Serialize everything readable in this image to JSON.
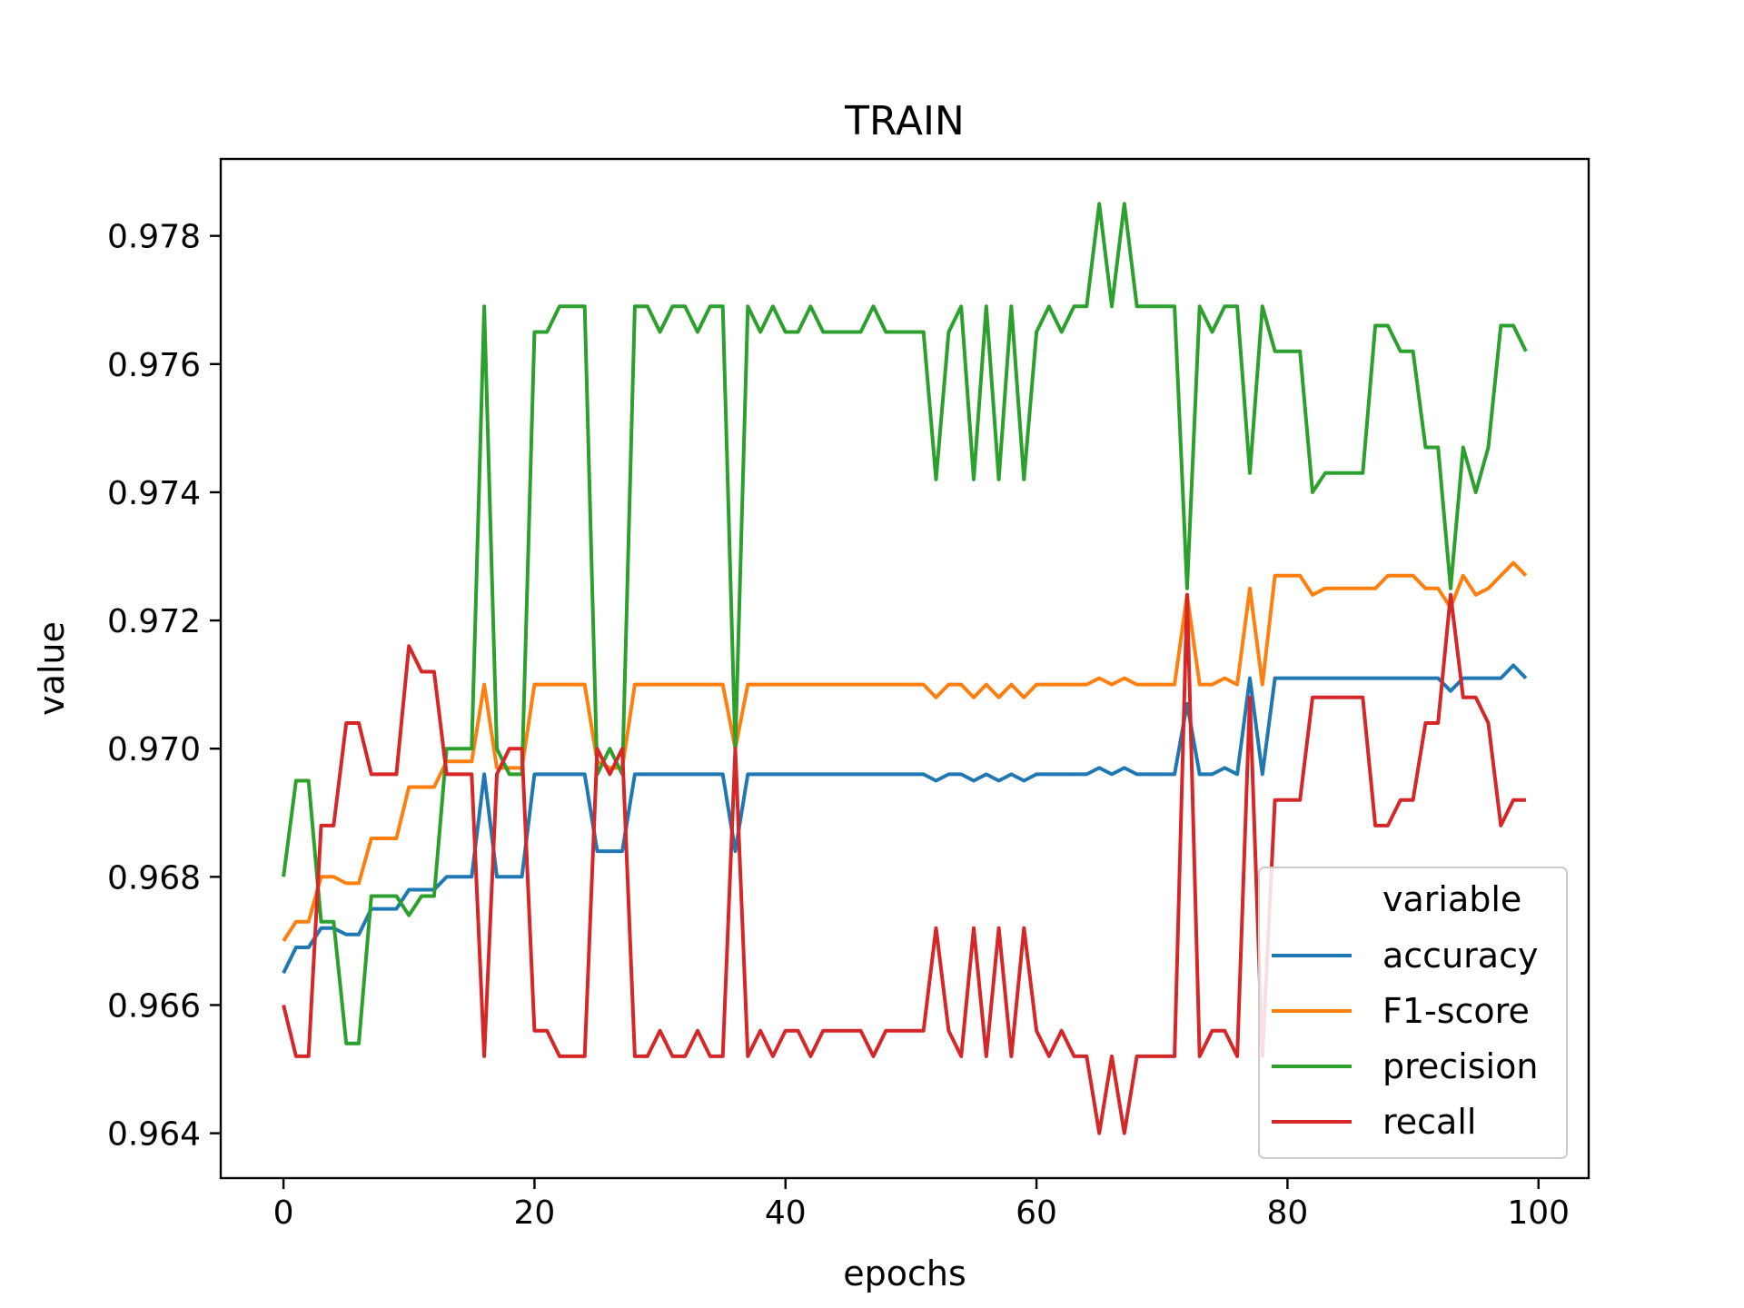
{
  "chart_data": {
    "type": "line",
    "title": "TRAIN",
    "xlabel": "epochs",
    "ylabel": "value",
    "xlim": [
      -5,
      104
    ],
    "ylim": [
      0.9633,
      0.9792
    ],
    "xticks": [
      0,
      20,
      40,
      60,
      80,
      100
    ],
    "xtick_labels": [
      "0",
      "20",
      "40",
      "60",
      "80",
      "100"
    ],
    "yticks": [
      0.964,
      0.966,
      0.968,
      0.97,
      0.972,
      0.974,
      0.976,
      0.978
    ],
    "ytick_labels": [
      "0.964",
      "0.966",
      "0.968",
      "0.970",
      "0.972",
      "0.974",
      "0.976",
      "0.978"
    ],
    "legend": {
      "title": "variable",
      "placement": "lower-right"
    },
    "grid": false,
    "series": [
      {
        "name": "accuracy",
        "color": "#1f77b4",
        "values": [
          0.9665,
          0.9669,
          0.9669,
          0.9672,
          0.9672,
          0.9671,
          0.9671,
          0.9675,
          0.9675,
          0.9675,
          0.9678,
          0.9678,
          0.9678,
          0.968,
          0.968,
          0.968,
          0.9696,
          0.968,
          0.968,
          0.968,
          0.9696,
          0.9696,
          0.9696,
          0.9696,
          0.9696,
          0.9684,
          0.9684,
          0.9684,
          0.9696,
          0.9696,
          0.9696,
          0.9696,
          0.9696,
          0.9696,
          0.9696,
          0.9696,
          0.9684,
          0.9696,
          0.9696,
          0.9696,
          0.9696,
          0.9696,
          0.9696,
          0.9696,
          0.9696,
          0.9696,
          0.9696,
          0.9696,
          0.9696,
          0.9696,
          0.9696,
          0.9696,
          0.9695,
          0.9696,
          0.9696,
          0.9695,
          0.9696,
          0.9695,
          0.9696,
          0.9695,
          0.9696,
          0.9696,
          0.9696,
          0.9696,
          0.9696,
          0.9697,
          0.9696,
          0.9697,
          0.9696,
          0.9696,
          0.9696,
          0.9696,
          0.9707,
          0.9696,
          0.9696,
          0.9697,
          0.9696,
          0.9711,
          0.9696,
          0.9711,
          0.9711,
          0.9711,
          0.9711,
          0.9711,
          0.9711,
          0.9711,
          0.9711,
          0.9711,
          0.9711,
          0.9711,
          0.9711,
          0.9711,
          0.9711,
          0.9709,
          0.9711,
          0.9711,
          0.9711,
          0.9711,
          0.9713,
          0.9711
        ],
        "values_note": ""
      }
    ]
  }
}
